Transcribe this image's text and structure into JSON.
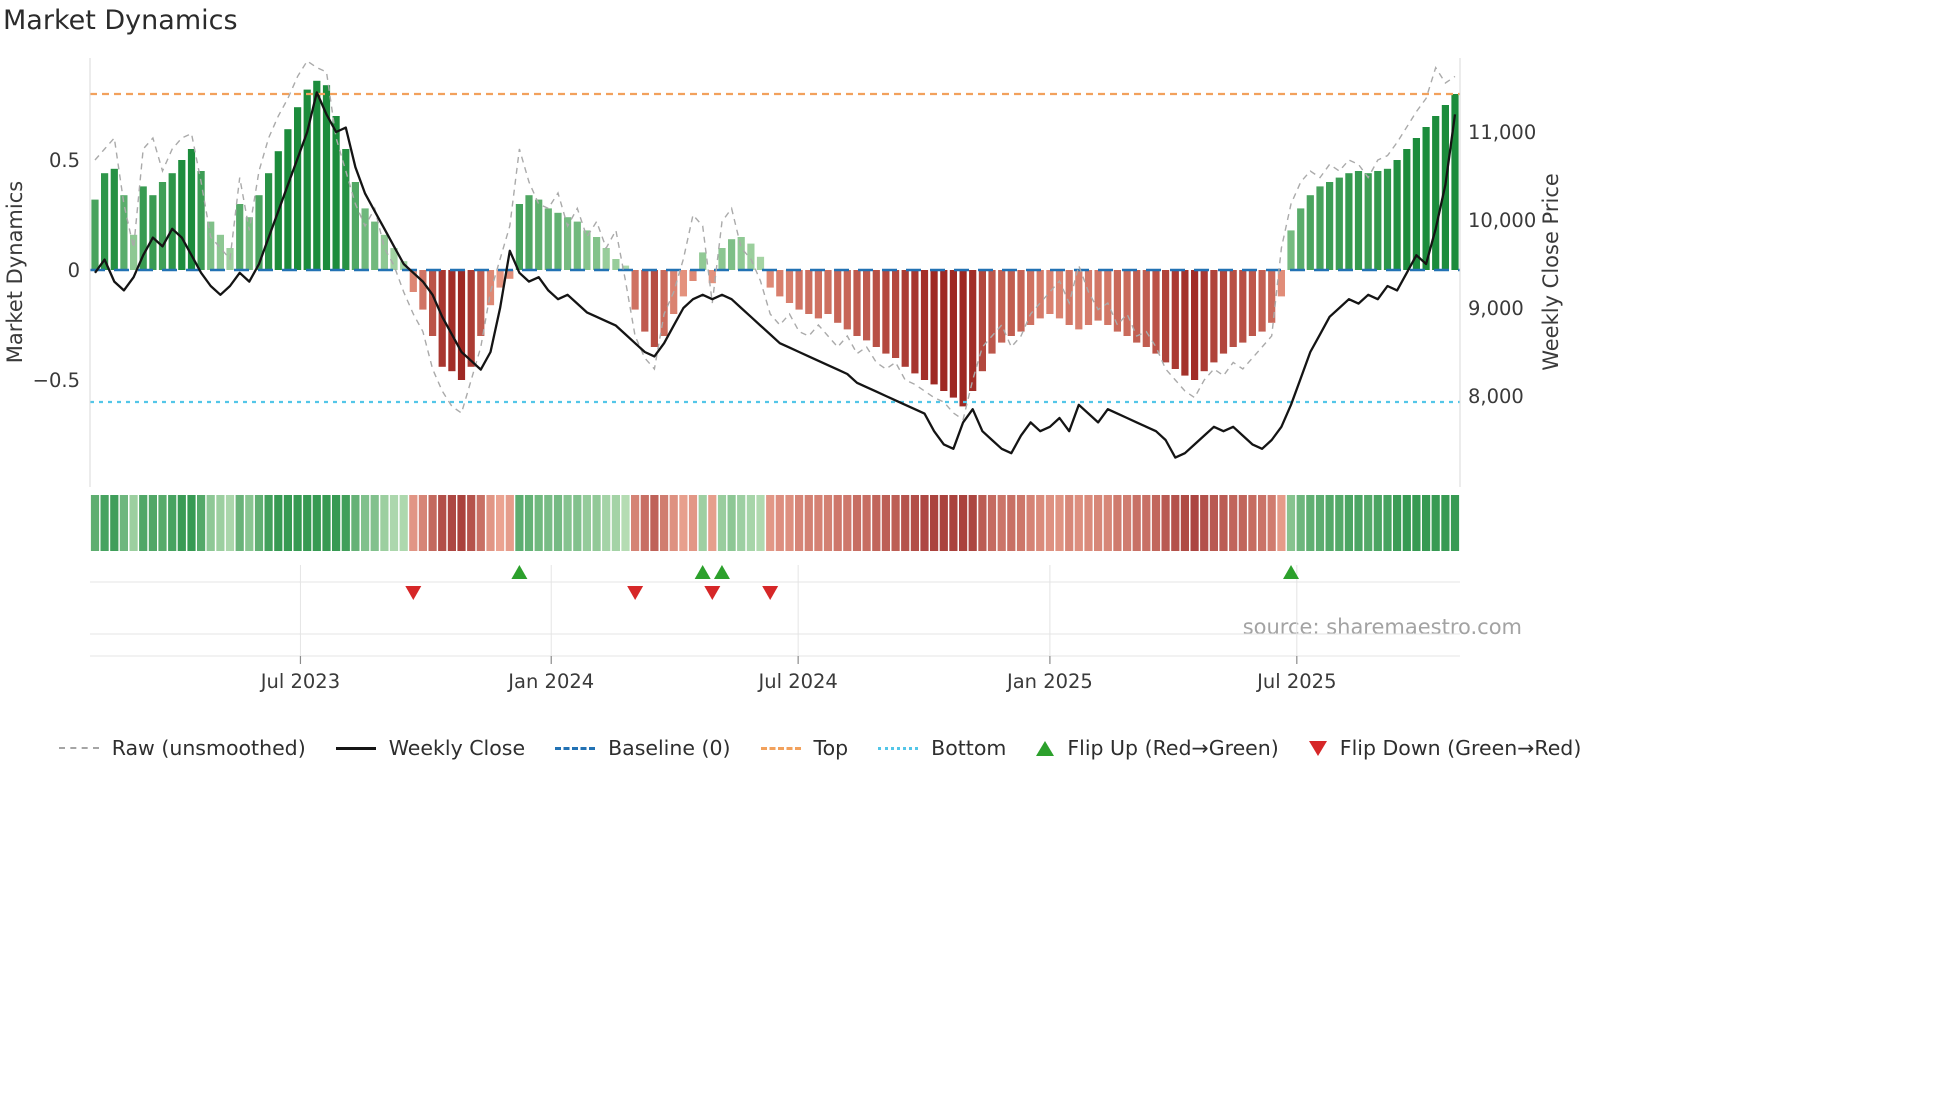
{
  "title": "Market Dynamics",
  "source": "source: sharemaestro.com",
  "axes": {
    "left_label": "Market Dynamics",
    "right_label": "Weekly Close Price",
    "left_ticks": [
      {
        "value": 0.5,
        "label": "0.5"
      },
      {
        "value": 0,
        "label": "0"
      },
      {
        "value": -0.5,
        "label": "−0.5"
      }
    ],
    "right_ticks": [
      {
        "value": 11000,
        "label": "11,000"
      },
      {
        "value": 10000,
        "label": "10,000"
      },
      {
        "value": 9000,
        "label": "9,000"
      },
      {
        "value": 8000,
        "label": "8,000"
      }
    ],
    "x_ticks": [
      {
        "week": 21.3,
        "label": "Jul 2023"
      },
      {
        "week": 47.3,
        "label": "Jan 2024"
      },
      {
        "week": 72.9,
        "label": "Jul 2024"
      },
      {
        "week": 99.0,
        "label": "Jan 2025"
      },
      {
        "week": 124.6,
        "label": "Jul 2025"
      }
    ]
  },
  "legend": {
    "items": [
      {
        "key": "raw",
        "label": "Raw (unsmoothed)"
      },
      {
        "key": "weekly_close",
        "label": "Weekly Close"
      },
      {
        "key": "baseline",
        "label": "Baseline (0)"
      },
      {
        "key": "top",
        "label": "Top"
      },
      {
        "key": "bottom",
        "label": "Bottom"
      },
      {
        "key": "flip_up",
        "label": "Flip Up (Red→Green)"
      },
      {
        "key": "flip_down",
        "label": "Flip Down (Green→Red)"
      }
    ]
  },
  "colors": {
    "green_dark": "#1c8c3c",
    "green_light": "#b4dcb0",
    "red_dark": "#9e2823",
    "red_light": "#f2a78f",
    "close_line": "#141414",
    "raw_line": "#aaaaaa",
    "baseline": "#2272b4",
    "top": "#f2a15c",
    "bottom": "#53c6e8",
    "flip_up": "#2ca02c",
    "flip_down": "#d62728",
    "grid": "#e4e4e4",
    "tick_text": "#3a3a3a",
    "source_text": "#a3a3a3"
  },
  "chart_data": {
    "type": "bar+line",
    "x_unit": "week_index",
    "n_points": 142,
    "left_ylim": [
      -0.95,
      0.95
    ],
    "right_ylim": [
      7000,
      11800
    ],
    "baseline": 0,
    "top_line": 0.8,
    "bottom_line": -0.6,
    "flip_up_weeks": [
      44,
      63,
      65,
      124
    ],
    "flip_down_weeks": [
      33,
      56,
      64,
      70
    ],
    "oscillator": [
      0.32,
      0.44,
      0.46,
      0.34,
      0.16,
      0.38,
      0.34,
      0.4,
      0.44,
      0.5,
      0.55,
      0.45,
      0.22,
      0.16,
      0.1,
      0.3,
      0.24,
      0.34,
      0.44,
      0.54,
      0.64,
      0.74,
      0.82,
      0.86,
      0.84,
      0.7,
      0.55,
      0.4,
      0.28,
      0.22,
      0.16,
      0.1,
      0.04,
      -0.1,
      -0.18,
      -0.3,
      -0.44,
      -0.46,
      -0.5,
      -0.44,
      -0.3,
      -0.16,
      -0.08,
      -0.04,
      0.3,
      0.34,
      0.32,
      0.28,
      0.26,
      0.24,
      0.22,
      0.18,
      0.15,
      0.1,
      0.05,
      0.02,
      -0.18,
      -0.28,
      -0.35,
      -0.3,
      -0.2,
      -0.12,
      -0.05,
      0.08,
      -0.06,
      0.1,
      0.14,
      0.15,
      0.12,
      0.06,
      -0.08,
      -0.12,
      -0.15,
      -0.18,
      -0.2,
      -0.22,
      -0.2,
      -0.24,
      -0.27,
      -0.3,
      -0.32,
      -0.35,
      -0.38,
      -0.4,
      -0.44,
      -0.47,
      -0.5,
      -0.52,
      -0.55,
      -0.58,
      -0.62,
      -0.55,
      -0.46,
      -0.38,
      -0.33,
      -0.3,
      -0.28,
      -0.25,
      -0.22,
      -0.2,
      -0.22,
      -0.25,
      -0.27,
      -0.25,
      -0.23,
      -0.25,
      -0.28,
      -0.3,
      -0.33,
      -0.35,
      -0.38,
      -0.42,
      -0.45,
      -0.48,
      -0.5,
      -0.46,
      -0.42,
      -0.38,
      -0.35,
      -0.33,
      -0.3,
      -0.28,
      -0.24,
      -0.12,
      0.18,
      0.28,
      0.34,
      0.38,
      0.4,
      0.42,
      0.44,
      0.45,
      0.44,
      0.45,
      0.46,
      0.5,
      0.55,
      0.6,
      0.65,
      0.7,
      0.75,
      0.8
    ],
    "raw": [
      0.5,
      0.55,
      0.6,
      0.3,
      0.1,
      0.55,
      0.6,
      0.45,
      0.55,
      0.6,
      0.62,
      0.4,
      0.15,
      0.1,
      0.05,
      0.42,
      0.18,
      0.45,
      0.6,
      0.7,
      0.78,
      0.88,
      0.95,
      0.92,
      0.9,
      0.6,
      0.45,
      0.3,
      0.2,
      0.28,
      0.1,
      0.02,
      -0.1,
      -0.2,
      -0.28,
      -0.45,
      -0.55,
      -0.62,
      -0.65,
      -0.5,
      -0.35,
      -0.1,
      0.05,
      0.2,
      0.55,
      0.4,
      0.3,
      0.28,
      0.35,
      0.2,
      0.28,
      0.15,
      0.22,
      0.1,
      0.18,
      -0.05,
      -0.3,
      -0.4,
      -0.45,
      -0.2,
      -0.1,
      0.05,
      0.25,
      0.2,
      -0.15,
      0.22,
      0.28,
      0.1,
      0.05,
      -0.05,
      -0.2,
      -0.25,
      -0.2,
      -0.28,
      -0.3,
      -0.25,
      -0.3,
      -0.35,
      -0.3,
      -0.38,
      -0.35,
      -0.42,
      -0.45,
      -0.42,
      -0.5,
      -0.52,
      -0.55,
      -0.58,
      -0.6,
      -0.65,
      -0.68,
      -0.5,
      -0.35,
      -0.3,
      -0.25,
      -0.35,
      -0.3,
      -0.2,
      -0.15,
      -0.1,
      -0.05,
      -0.15,
      0.02,
      -0.1,
      -0.18,
      -0.15,
      -0.25,
      -0.2,
      -0.3,
      -0.28,
      -0.35,
      -0.45,
      -0.5,
      -0.55,
      -0.58,
      -0.5,
      -0.45,
      -0.48,
      -0.42,
      -0.45,
      -0.4,
      -0.35,
      -0.3,
      0.1,
      0.3,
      0.4,
      0.45,
      0.42,
      0.48,
      0.45,
      0.5,
      0.48,
      0.42,
      0.5,
      0.52,
      0.58,
      0.65,
      0.72,
      0.78,
      0.92,
      0.85,
      0.88
    ],
    "weekly_close": [
      9400,
      9550,
      9300,
      9200,
      9350,
      9600,
      9800,
      9700,
      9900,
      9800,
      9600,
      9400,
      9250,
      9150,
      9250,
      9400,
      9300,
      9500,
      9800,
      10100,
      10400,
      10700,
      11000,
      11450,
      11200,
      11000,
      11050,
      10600,
      10300,
      10100,
      9900,
      9700,
      9500,
      9400,
      9300,
      9150,
      8900,
      8700,
      8500,
      8400,
      8300,
      8500,
      9000,
      9650,
      9400,
      9300,
      9350,
      9200,
      9100,
      9150,
      9050,
      8950,
      8900,
      8850,
      8800,
      8700,
      8600,
      8500,
      8450,
      8600,
      8800,
      9000,
      9100,
      9150,
      9100,
      9150,
      9100,
      9000,
      8900,
      8800,
      8700,
      8600,
      8550,
      8500,
      8450,
      8400,
      8350,
      8300,
      8250,
      8150,
      8100,
      8050,
      8000,
      7950,
      7900,
      7850,
      7800,
      7600,
      7450,
      7400,
      7700,
      7850,
      7600,
      7500,
      7400,
      7350,
      7550,
      7700,
      7600,
      7650,
      7750,
      7600,
      7900,
      7800,
      7700,
      7850,
      7800,
      7750,
      7700,
      7650,
      7600,
      7500,
      7300,
      7350,
      7450,
      7550,
      7650,
      7600,
      7650,
      7550,
      7450,
      7400,
      7500,
      7650,
      7900,
      8200,
      8500,
      8700,
      8900,
      9000,
      9100,
      9050,
      9150,
      9100,
      9250,
      9200,
      9400,
      9600,
      9500,
      9900,
      10400,
      11200
    ]
  }
}
